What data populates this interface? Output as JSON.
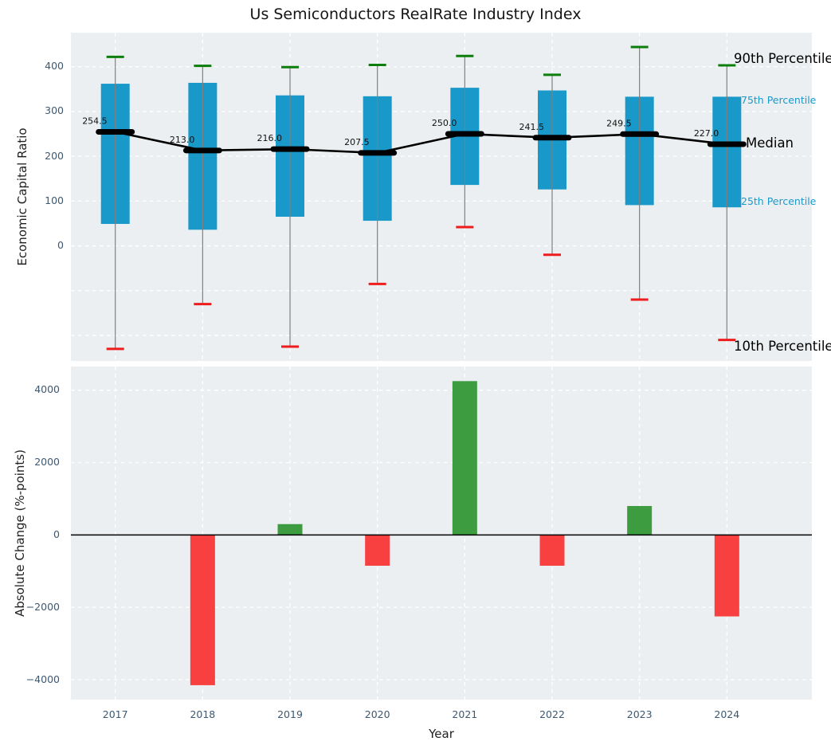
{
  "figure": {
    "title": "Us Semiconductors RealRate Industry Index"
  },
  "chart_data": [
    {
      "type": "boxplot-timeseries",
      "panel": "top",
      "title": "Us Semiconductors RealRate Industry Index",
      "ylabel": "Economic Capital Ratio",
      "categories": [
        "2017",
        "2018",
        "2019",
        "2020",
        "2021",
        "2022",
        "2023",
        "2024"
      ],
      "series": [
        {
          "name": "90th Percentile",
          "values": [
            422,
            402,
            399,
            404,
            424,
            382,
            444,
            403
          ]
        },
        {
          "name": "75th Percentile",
          "values": [
            362,
            364,
            336,
            334,
            353,
            347,
            333,
            333
          ]
        },
        {
          "name": "Median",
          "values": [
            254.5,
            213.0,
            216.0,
            207.5,
            250.0,
            241.5,
            249.5,
            227.0
          ]
        },
        {
          "name": "25th Percentile",
          "values": [
            49,
            36,
            65,
            56,
            136,
            126,
            91,
            86
          ]
        },
        {
          "name": "10th Percentile",
          "values": [
            -230,
            -130,
            -225,
            -85,
            42,
            -20,
            -120,
            -210
          ]
        }
      ],
      "median_labels": [
        "254.5",
        "213.0",
        "216.0",
        "207.5",
        "250.0",
        "241.5",
        "249.5",
        "227.0"
      ],
      "right_labels": [
        {
          "text": "90th Percentile",
          "style": "black-large"
        },
        {
          "text": "75th Percentile",
          "style": "blue-small"
        },
        {
          "text": "Median",
          "style": "black-large"
        },
        {
          "text": "25th Percentile",
          "style": "blue-small"
        },
        {
          "text": "10th Percentile",
          "style": "black-large"
        }
      ],
      "yticks": [
        "0",
        "100",
        "200",
        "300",
        "400"
      ],
      "ytick_values": [
        0,
        100,
        200,
        300,
        400
      ],
      "grid_values": [
        -200,
        -100,
        0,
        100,
        200,
        300,
        400
      ],
      "ylim": [
        -257,
        476
      ],
      "grid": true,
      "colors": {
        "box": "#1899CA",
        "median": "#000000",
        "p90_cap": "#0B7E0B",
        "p10_cap": "#EE1C1C",
        "whisker": "#7F7F7F",
        "panel_bg": "#ECEFF1"
      }
    },
    {
      "type": "bar",
      "panel": "bottom",
      "ylabel": "Absolute Change (%-points)",
      "xlabel": "Year",
      "categories": [
        "2017",
        "2018",
        "2019",
        "2020",
        "2021",
        "2022",
        "2023",
        "2024"
      ],
      "values": [
        null,
        -4150,
        300,
        -850,
        4250,
        -850,
        800,
        -2250
      ],
      "yticks": [
        "−4000",
        "−2000",
        "0",
        "2000",
        "4000"
      ],
      "ytick_values": [
        -4000,
        -2000,
        0,
        2000,
        4000
      ],
      "grid_values": [
        -4000,
        -2000,
        2000,
        4000
      ],
      "ylim": [
        -4548,
        4653
      ],
      "grid": true,
      "colors": {
        "positive": "#3D9B40",
        "negative": "#F94040",
        "zero_line": "#000000",
        "panel_bg": "#ECEFF1"
      }
    }
  ]
}
